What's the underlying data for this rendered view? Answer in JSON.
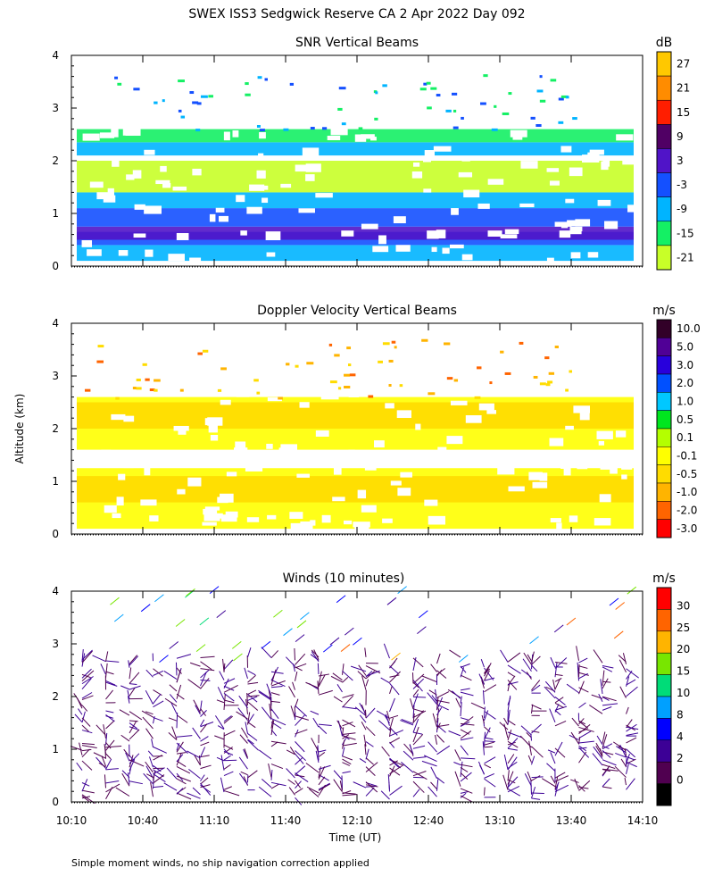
{
  "chart_data": {
    "title": "SWEX ISS3 Sedgwick Reserve CA    2 Apr 2022 Day 092",
    "footnote": "Simple moment winds, no ship navigation correction applied",
    "xlabel": "Time (UT)",
    "ylabel": "Altitude (km)",
    "x_ticks": [
      "10:10",
      "10:40",
      "11:10",
      "11:40",
      "12:10",
      "12:40",
      "13:10",
      "13:40",
      "14:10"
    ],
    "y_ticks": [
      "0",
      "1",
      "2",
      "3",
      "4"
    ],
    "panels": [
      {
        "type": "heatmap",
        "title": "SNR Vertical Beams",
        "unit": "dB",
        "ylim": [
          0,
          4
        ],
        "colorbar": [
          {
            "label": "27",
            "color": "#ffc800"
          },
          {
            "label": "21",
            "color": "#ff8c00"
          },
          {
            "label": "15",
            "color": "#ff1e00"
          },
          {
            "label": "9",
            "color": "#500064"
          },
          {
            "label": "3",
            "color": "#5014c8"
          },
          {
            "label": "-3",
            "color": "#1450ff"
          },
          {
            "label": "-9",
            "color": "#00b4ff"
          },
          {
            "label": "-15",
            "color": "#14f064"
          },
          {
            "label": "-21",
            "color": "#c8ff28"
          }
        ],
        "layers": [
          {
            "alt": [
              0.1,
              0.4
            ],
            "color_index": 6
          },
          {
            "alt": [
              0.4,
              0.65
            ],
            "color_index": 5
          },
          {
            "alt": [
              0.5,
              0.75
            ],
            "color_index": 4
          },
          {
            "alt": [
              0.75,
              1.1
            ],
            "color_index": 5
          },
          {
            "alt": [
              1.1,
              1.4
            ],
            "color_index": 6
          },
          {
            "alt": [
              1.4,
              2.0
            ],
            "color_index": 8
          },
          {
            "alt": [
              2.1,
              2.35
            ],
            "color_index": 6
          },
          {
            "alt": [
              2.35,
              2.6
            ],
            "color_index": 7
          }
        ]
      },
      {
        "type": "heatmap",
        "title": "Doppler Velocity Vertical Beams",
        "unit": "m/s",
        "ylim": [
          0,
          4
        ],
        "colorbar": [
          {
            "label": "10.0",
            "color": "#320028"
          },
          {
            "label": "5.0",
            "color": "#500096"
          },
          {
            "label": "3.0",
            "color": "#2800dc"
          },
          {
            "label": "2.0",
            "color": "#0050ff"
          },
          {
            "label": "1.0",
            "color": "#00c8ff"
          },
          {
            "label": "0.5",
            "color": "#00e61e"
          },
          {
            "label": "0.1",
            "color": "#b4ff00"
          },
          {
            "label": "-0.1",
            "color": "#ffff00"
          },
          {
            "label": "-0.5",
            "color": "#ffdc00"
          },
          {
            "label": "-1.0",
            "color": "#ffb400"
          },
          {
            "label": "-2.0",
            "color": "#ff6400"
          },
          {
            "label": "-3.0",
            "color": "#ff0000"
          }
        ],
        "layers": [
          {
            "alt": [
              0.1,
              1.25
            ],
            "color_index": 7
          },
          {
            "alt": [
              0.6,
              1.1
            ],
            "color_index": 8
          },
          {
            "alt": [
              1.6,
              2.6
            ],
            "color_index": 7
          },
          {
            "alt": [
              2.0,
              2.5
            ],
            "color_index": 8
          }
        ]
      },
      {
        "type": "wind-barbs",
        "title": "Winds (10 minutes)",
        "unit": "m/s",
        "ylim": [
          0,
          4
        ],
        "colorbar": [
          {
            "label": "30",
            "color": "#ff0000"
          },
          {
            "label": "25",
            "color": "#ff6400"
          },
          {
            "label": "20",
            "color": "#ffb400"
          },
          {
            "label": "15",
            "color": "#78e600"
          },
          {
            "label": "10",
            "color": "#00dc78"
          },
          {
            "label": "8",
            "color": "#00a0ff"
          },
          {
            "label": "4",
            "color": "#0000ff"
          },
          {
            "label": "2",
            "color": "#3c0096"
          },
          {
            "label": "0",
            "color": "#500050"
          },
          {
            "label": "",
            "color": "#000000"
          }
        ]
      }
    ]
  }
}
